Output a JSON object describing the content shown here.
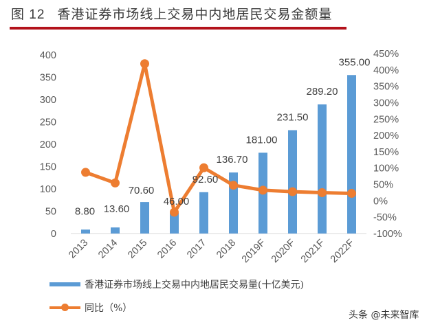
{
  "header": {
    "figure_label": "图 12",
    "title": "香港证券市场线上交易中内地居民交易金额量"
  },
  "legend": {
    "bar_label": "香港证券市场线上交易中内地居民交易量(十亿美元)",
    "line_label": "同比（%）"
  },
  "watermark": "头条 @未来智库",
  "colors": {
    "bar": "#5b9bd5",
    "line": "#ed7d31",
    "rule": "#b3121b"
  },
  "chart_data": {
    "type": "bar+line",
    "title": "香港证券市场线上交易中内地居民交易金额量",
    "categories": [
      "2013",
      "2014",
      "2015",
      "2016",
      "2017",
      "2018",
      "2019F",
      "2020F",
      "2021F",
      "2022F"
    ],
    "series": [
      {
        "name": "香港证券市场线上交易中内地居民交易量(十亿美元)",
        "type": "bar",
        "axis": "left",
        "values": [
          8.8,
          13.6,
          70.6,
          46.0,
          92.6,
          136.7,
          181.0,
          231.5,
          289.2,
          355.0
        ],
        "labels": [
          "8.80",
          "13.60",
          "70.60",
          "46.00",
          "92.60",
          "136.70",
          "181.00",
          "231.50",
          "289.20",
          "355.00"
        ]
      },
      {
        "name": "同比（%）",
        "type": "line",
        "axis": "right",
        "values": [
          87,
          54.5,
          419,
          -34.8,
          101,
          47.6,
          32.4,
          27.9,
          24.9,
          22.8
        ]
      }
    ],
    "left_axis": {
      "ylim": [
        0,
        400
      ],
      "ticks": [
        "0",
        "50",
        "100",
        "150",
        "200",
        "250",
        "300",
        "350",
        "400"
      ]
    },
    "right_axis": {
      "ylim": [
        -100,
        450
      ],
      "ticks": [
        "-100%",
        "-50%",
        "0%",
        "50%",
        "100%",
        "150%",
        "200%",
        "250%",
        "300%",
        "350%",
        "400%",
        "450%"
      ]
    },
    "grid": false,
    "legend_position": "bottom"
  }
}
